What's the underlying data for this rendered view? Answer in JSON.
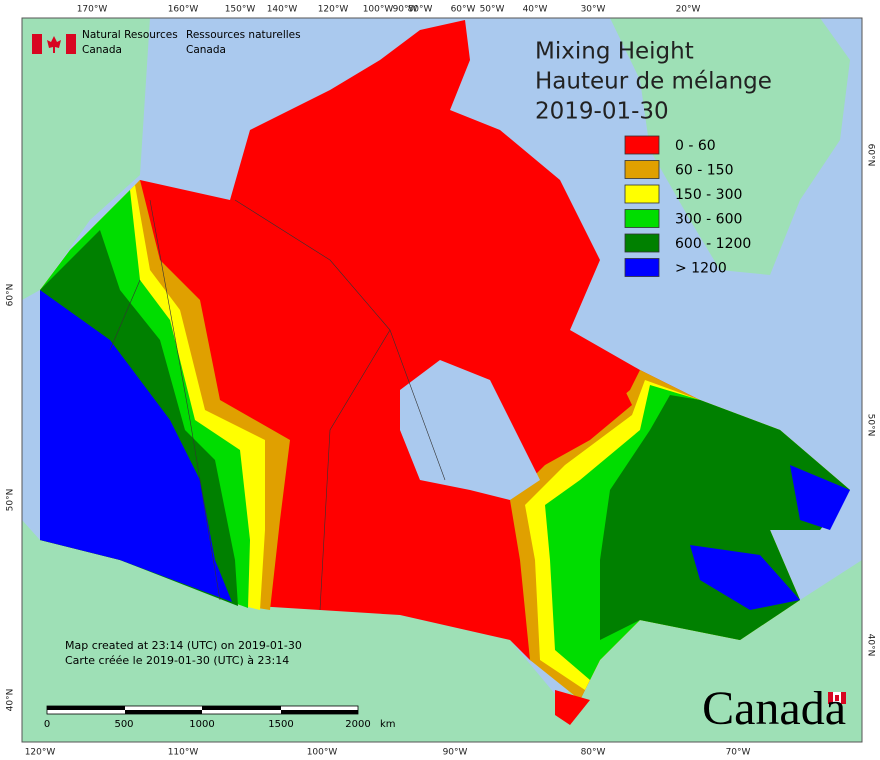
{
  "header": {
    "department_en": "Natural Resources",
    "country_en": "Canada",
    "department_fr": "Ressources naturelles",
    "country_fr": "Canada"
  },
  "title": [
    "Mixing Height",
    "Hauteur de mélange",
    "2019-01-30"
  ],
  "legend": [
    {
      "label": "0 - 60",
      "color": "#ff0000"
    },
    {
      "label": "60 - 150",
      "color": "#e0a000"
    },
    {
      "label": "150 - 300",
      "color": "#ffff00"
    },
    {
      "label": "300 - 600",
      "color": "#00dd00"
    },
    {
      "label": "600 - 1200",
      "color": "#008000"
    },
    {
      "label": "> 1200",
      "color": "#0000ff"
    }
  ],
  "footnote": [
    "Map created at 23:14 (UTC) on 2019-01-30",
    "Carte créée le 2019-01-30 (UTC) à 23:14"
  ],
  "scale_bar": {
    "labels": [
      0,
      500,
      1000,
      1500,
      2000
    ],
    "unit": "km"
  },
  "graticule": {
    "top": [
      "170°W",
      "160°W",
      "150°W",
      "140°W",
      "120°W",
      "100°W",
      "90°W",
      "80°W",
      "60°W",
      "50°W",
      "40°W",
      "30°W",
      "20°W"
    ],
    "bottom": [
      "120°W",
      "110°W",
      "100°W",
      "90°W",
      "80°W",
      "70°W"
    ],
    "left": [
      "60°N",
      "50°N",
      "40°N"
    ],
    "right": [
      "60°N",
      "50°N",
      "40°N"
    ]
  },
  "wordmark": "Canada"
}
